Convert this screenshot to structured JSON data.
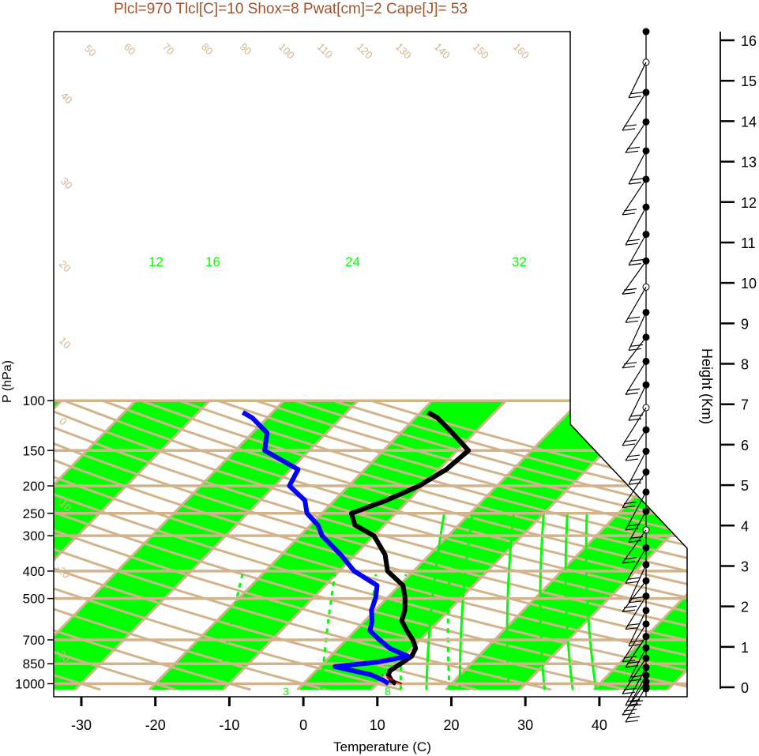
{
  "chart_data": {
    "type": "line",
    "title": "Plcl=970 Tlcl[C]=10 Shox=8 Pwat[cm]=2 Cape[J]= 53",
    "xlabel": "Temperature (C)",
    "ylabel": "P (hPa)",
    "y2label": "Height (Km)",
    "x_ticks": [
      "-30",
      "-20",
      "-10",
      "0",
      "10",
      "20",
      "30",
      "40"
    ],
    "p_ticks": [
      {
        "p": 100,
        "label": "100"
      },
      {
        "p": 150,
        "label": "150"
      },
      {
        "p": 200,
        "label": "200"
      },
      {
        "p": 250,
        "label": "250"
      },
      {
        "p": 300,
        "label": "300"
      },
      {
        "p": 400,
        "label": "400"
      },
      {
        "p": 500,
        "label": "500"
      },
      {
        "p": 700,
        "label": "700"
      },
      {
        "p": 850,
        "label": "850"
      },
      {
        "p": 1000,
        "label": "1000"
      }
    ],
    "height_ticks": [
      "0",
      "1",
      "2",
      "3",
      "4",
      "5",
      "6",
      "7",
      "8",
      "9",
      "10",
      "11",
      "12",
      "13",
      "14",
      "15",
      "16"
    ],
    "isotherm_labels": [
      "50",
      "60",
      "70",
      "80",
      "90",
      "100",
      "110",
      "120",
      "130",
      "140",
      "150",
      "160",
      "-30",
      "-20",
      "-10",
      "0",
      "10",
      "20",
      "30"
    ],
    "dry_adiabat_labels": [
      "40",
      "30",
      "20",
      "10",
      "0",
      "-10",
      "-20",
      "-30"
    ],
    "mixing_ratio_labels": [
      "12",
      "16",
      "24",
      "32",
      "3",
      "8"
    ],
    "series": [
      {
        "name": "Temperature",
        "color": "#000000",
        "points": [
          [
            1000,
            12.5
          ],
          [
            975,
            11.5
          ],
          [
            930,
            10.3
          ],
          [
            900,
            10.0
          ],
          [
            850,
            10.5
          ],
          [
            800,
            11.0
          ],
          [
            750,
            10.5
          ],
          [
            700,
            9.0
          ],
          [
            650,
            7.0
          ],
          [
            600,
            5.0
          ],
          [
            550,
            4.0
          ],
          [
            500,
            2.5
          ],
          [
            450,
            0.5
          ],
          [
            400,
            -3.5
          ],
          [
            350,
            -6.0
          ],
          [
            300,
            -10.0
          ],
          [
            275,
            -14.0
          ],
          [
            250,
            -16.0
          ],
          [
            225,
            -13.0
          ],
          [
            200,
            -10.5
          ],
          [
            175,
            -9.0
          ],
          [
            150,
            -8.5
          ],
          [
            130,
            -13.0
          ],
          [
            115,
            -17.0
          ],
          [
            110,
            -19.0
          ]
        ]
      },
      {
        "name": "Dewpoint",
        "color": "#0000ff",
        "points": [
          [
            1000,
            11.5
          ],
          [
            975,
            10.5
          ],
          [
            930,
            8.0
          ],
          [
            900,
            5.0
          ],
          [
            870,
            2.0
          ],
          [
            840,
            7.0
          ],
          [
            800,
            10.5
          ],
          [
            750,
            7.0
          ],
          [
            700,
            4.5
          ],
          [
            650,
            2.0
          ],
          [
            600,
            1.0
          ],
          [
            550,
            -0.5
          ],
          [
            500,
            -1.5
          ],
          [
            450,
            -3.0
          ],
          [
            400,
            -8.0
          ],
          [
            350,
            -12.0
          ],
          [
            300,
            -17.0
          ],
          [
            275,
            -19.0
          ],
          [
            250,
            -22.0
          ],
          [
            225,
            -24.0
          ],
          [
            200,
            -28.0
          ],
          [
            175,
            -29.0
          ],
          [
            150,
            -36.0
          ],
          [
            130,
            -38.0
          ],
          [
            115,
            -42.0
          ],
          [
            110,
            -44.0
          ]
        ]
      },
      {
        "name": "Parcel",
        "color": "#cc0000",
        "points": [
          [
            1000,
            13.3
          ],
          [
            970,
            11.5
          ],
          [
            930,
            9.5
          ]
        ]
      }
    ],
    "wind_barbs_count": 35
  }
}
